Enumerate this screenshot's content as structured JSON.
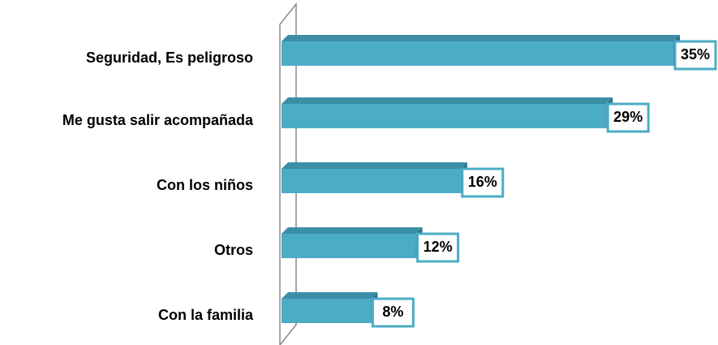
{
  "chart_data": {
    "type": "bar",
    "categories": [
      "Seguridad, Es peligroso",
      "Me gusta salir acompañada",
      "Con los niños",
      "Otros",
      "Con la familia"
    ],
    "values": [
      35,
      29,
      16,
      12,
      8
    ],
    "value_labels": [
      "35%",
      "29%",
      "16%",
      "12%",
      "8%"
    ],
    "color": "#4bacc6"
  }
}
